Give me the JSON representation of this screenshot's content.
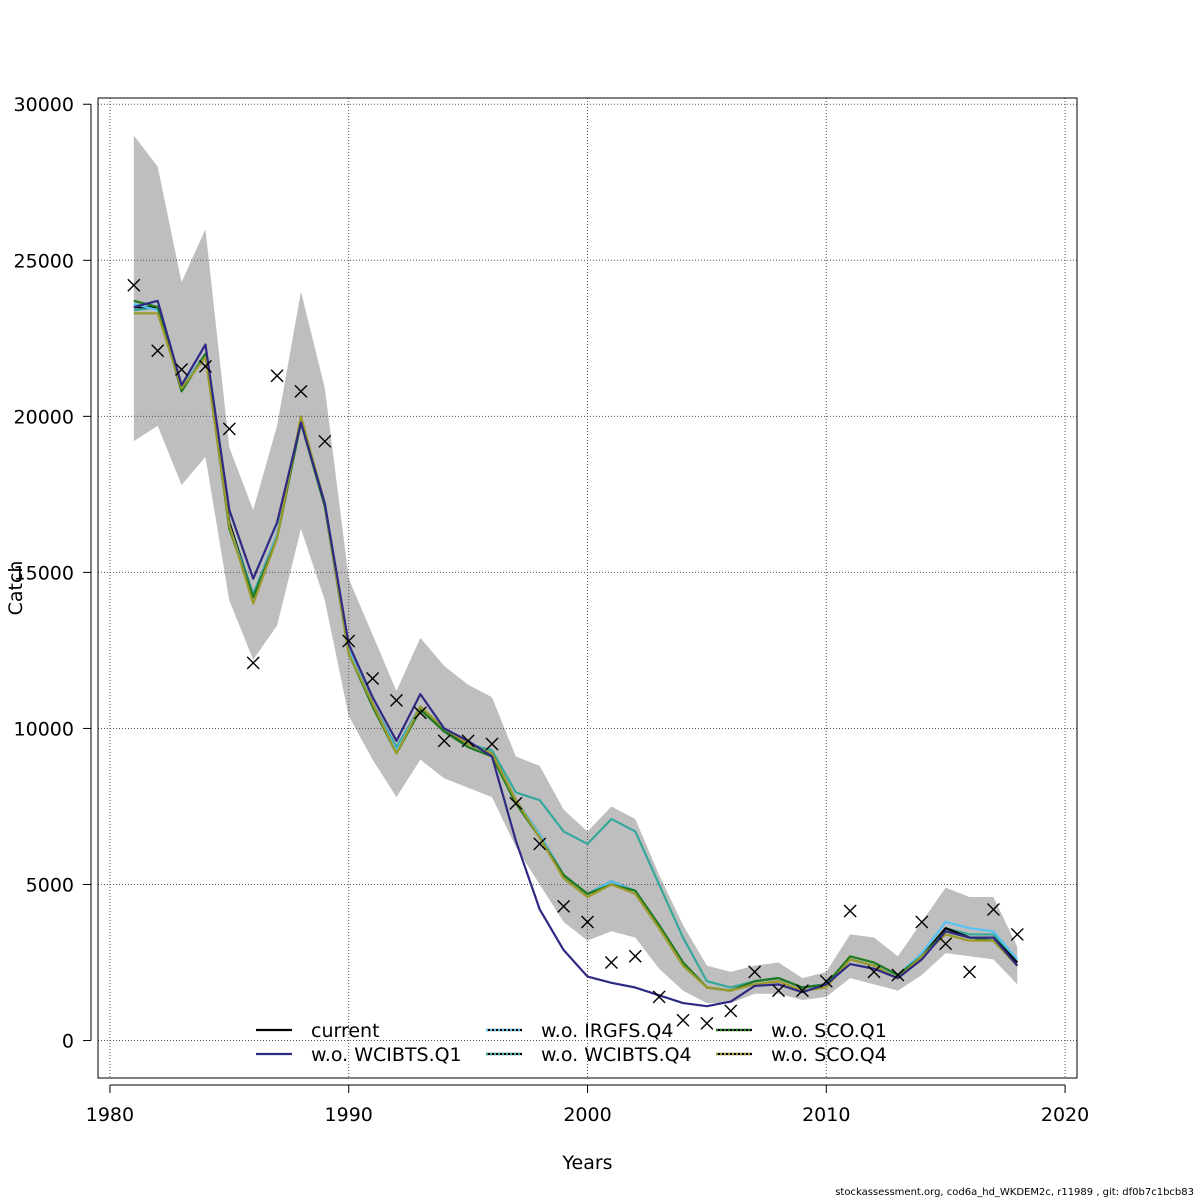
{
  "chart_data": {
    "type": "line",
    "title": "",
    "xlabel": "Years",
    "ylabel": "Catch",
    "xlim": [
      1979.5,
      2020.5
    ],
    "ylim": [
      -1200,
      30200
    ],
    "x_ticks": [
      1980,
      1990,
      2000,
      2010,
      2020
    ],
    "y_ticks": [
      0,
      5000,
      10000,
      15000,
      20000,
      25000,
      30000
    ],
    "grid": true,
    "legend_position": "bottom-center",
    "band": {
      "color": "#bebebe",
      "x": [
        1981,
        1982,
        1983,
        1984,
        1985,
        1986,
        1987,
        1988,
        1989,
        1990,
        1991,
        1992,
        1993,
        1994,
        1995,
        1996,
        1997,
        1998,
        1999,
        2000,
        2001,
        2002,
        2003,
        2004,
        2005,
        2006,
        2007,
        2008,
        2009,
        2010,
        2011,
        2012,
        2013,
        2014,
        2015,
        2016,
        2017,
        2018
      ],
      "upper": [
        29000,
        28000,
        24300,
        26000,
        19000,
        17000,
        19700,
        24000,
        20900,
        14800,
        13000,
        11200,
        12900,
        12000,
        11400,
        11000,
        9100,
        8800,
        7400,
        6700,
        7500,
        7100,
        5300,
        3700,
        2400,
        2200,
        2400,
        2500,
        2000,
        2200,
        3400,
        3300,
        2700,
        3800,
        4900,
        4600,
        4600,
        3000
      ],
      "lower": [
        19200,
        19700,
        17800,
        18700,
        14100,
        12200,
        13300,
        16400,
        14100,
        10400,
        9000,
        7800,
        9000,
        8400,
        8100,
        7800,
        6200,
        5000,
        3800,
        3200,
        3500,
        3300,
        2300,
        1600,
        1200,
        1200,
        1500,
        1500,
        1300,
        1400,
        2000,
        1800,
        1600,
        2100,
        2800,
        2700,
        2600,
        1800
      ]
    },
    "x": [
      1981,
      1982,
      1983,
      1984,
      1985,
      1986,
      1987,
      1988,
      1989,
      1990,
      1991,
      1992,
      1993,
      1994,
      1995,
      1996,
      1997,
      1998,
      1999,
      2000,
      2001,
      2002,
      2003,
      2004,
      2005,
      2006,
      2007,
      2008,
      2009,
      2010,
      2011,
      2012,
      2013,
      2014,
      2015,
      2016,
      2017,
      2018
    ],
    "series": [
      {
        "name": "current",
        "color": "#000000",
        "dash": "solid",
        "values": [
          23500,
          23500,
          20900,
          22000,
          16600,
          14200,
          16200,
          19900,
          17200,
          12500,
          10800,
          9300,
          10700,
          9900,
          9500,
          9200,
          7700,
          6600,
          5300,
          4700,
          5100,
          4800,
          3700,
          2500,
          1700,
          1600,
          1900,
          2000,
          1700,
          1800,
          2600,
          2400,
          2100,
          2700,
          3600,
          3300,
          3300,
          2500
        ]
      },
      {
        "name": "w.o. WCIBTS.Q1",
        "color": "#2e2a84",
        "dash": "solid",
        "values": [
          23500,
          23700,
          21000,
          22300,
          17000,
          14800,
          16600,
          19800,
          17200,
          12700,
          11000,
          9600,
          11100,
          10000,
          9600,
          9100,
          6400,
          4200,
          2900,
          2050,
          1850,
          1700,
          1450,
          1200,
          1100,
          1250,
          1750,
          1800,
          1550,
          1800,
          2450,
          2300,
          2000,
          2600,
          3500,
          3300,
          3300,
          2400
        ]
      },
      {
        "name": "w.o. IRGFS.Q4",
        "color": "#56c4f2",
        "dash": "dotted",
        "values": [
          23600,
          23400,
          20900,
          22000,
          16500,
          14200,
          16200,
          19900,
          17200,
          12500,
          10800,
          9300,
          10700,
          10000,
          9500,
          9200,
          7700,
          6600,
          5300,
          4700,
          5100,
          4800,
          3700,
          2500,
          1700,
          1600,
          1900,
          2000,
          1700,
          1800,
          2600,
          2400,
          2100,
          2800,
          3800,
          3600,
          3500,
          2600
        ]
      },
      {
        "name": "w.o. WCIBTS.Q4",
        "color": "#36a89a",
        "dash": "dotted",
        "values": [
          23400,
          23500,
          20900,
          22000,
          16600,
          14300,
          16200,
          19900,
          17200,
          12500,
          10800,
          9400,
          10700,
          10000,
          9500,
          9300,
          7950,
          7700,
          6700,
          6300,
          7100,
          6700,
          5000,
          3300,
          1900,
          1700,
          1900,
          2000,
          1700,
          1800,
          2600,
          2400,
          2100,
          2700,
          3600,
          3400,
          3400,
          2500
        ]
      },
      {
        "name": "w.o. SCO.Q1",
        "color": "#1f7a1f",
        "dash": "dotted",
        "values": [
          23700,
          23500,
          20800,
          22000,
          16400,
          14200,
          16100,
          19800,
          17100,
          12400,
          10700,
          9200,
          10600,
          9900,
          9400,
          9100,
          7600,
          6500,
          5300,
          4700,
          5000,
          4800,
          3700,
          2500,
          1700,
          1600,
          1900,
          2000,
          1700,
          1800,
          2700,
          2500,
          2100,
          2700,
          3500,
          3300,
          3200,
          2400
        ]
      },
      {
        "name": "w.o. SCO.Q4",
        "color": "#9c9a2a",
        "dash": "dotted",
        "values": [
          23300,
          23300,
          20900,
          21900,
          16500,
          14000,
          16100,
          20000,
          17200,
          12400,
          10800,
          9200,
          10700,
          10000,
          9500,
          9200,
          7700,
          6500,
          5200,
          4600,
          5000,
          4700,
          3600,
          2400,
          1700,
          1600,
          1800,
          1900,
          1600,
          1700,
          2600,
          2400,
          2000,
          2700,
          3400,
          3200,
          3200,
          2400
        ]
      }
    ],
    "observations": {
      "marker": "x",
      "x": [
        1981,
        1982,
        1983,
        1984,
        1985,
        1986,
        1987,
        1988,
        1989,
        1990,
        1991,
        1992,
        1993,
        1994,
        1995,
        1996,
        1997,
        1998,
        1999,
        2000,
        2001,
        2002,
        2003,
        2004,
        2005,
        2006,
        2007,
        2008,
        2009,
        2010,
        2011,
        2012,
        2013,
        2014,
        2015,
        2016,
        2017,
        2018
      ],
      "values": [
        24200,
        22100,
        21500,
        21600,
        19600,
        12100,
        21300,
        20800,
        19200,
        12800,
        11600,
        10900,
        10500,
        9600,
        9600,
        9500,
        7600,
        6300,
        4300,
        3800,
        2500,
        2700,
        1400,
        650,
        550,
        950,
        2200,
        1600,
        1600,
        1900,
        4150,
        2200,
        2100,
        3800,
        3100,
        2200,
        4200,
        3400
      ]
    }
  },
  "footer_text": "stockassessment.org, cod6a_hd_WKDEM2c, r11989 , git: df0b7c1bcb83"
}
